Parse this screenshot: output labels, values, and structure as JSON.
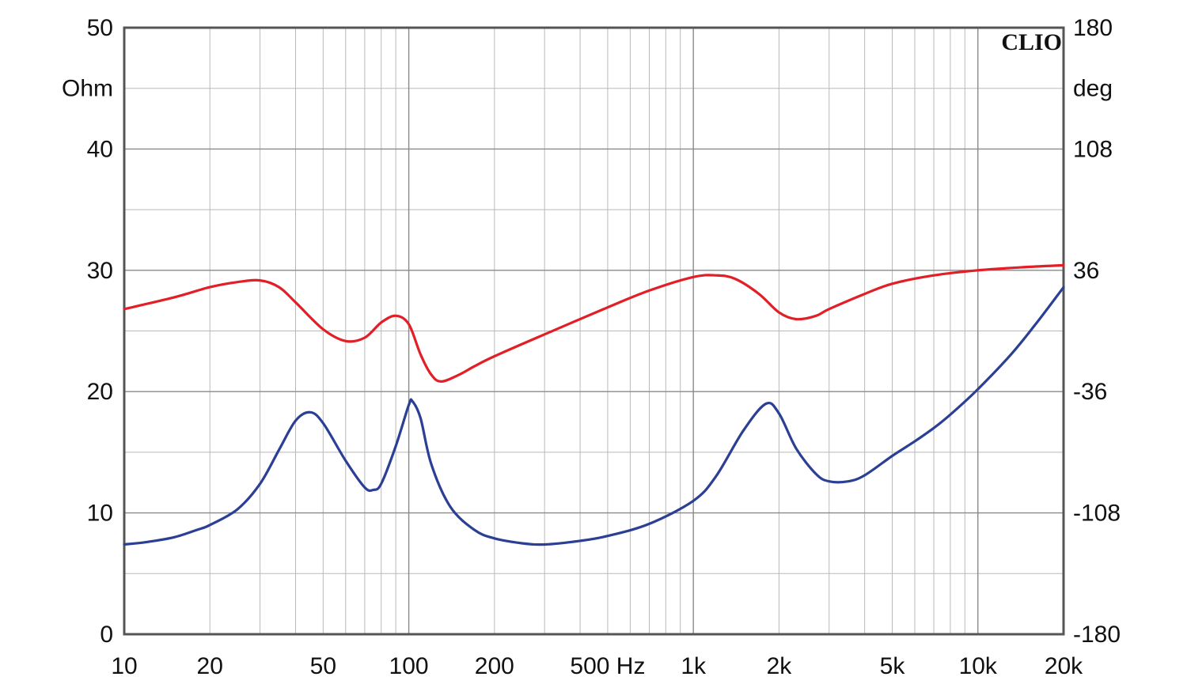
{
  "chart_data": {
    "type": "line",
    "brand": "CLIO",
    "x_scale": "log",
    "xlim": [
      10,
      20000
    ],
    "x_ticks": [
      {
        "value": 10,
        "label": "10"
      },
      {
        "value": 20,
        "label": "20"
      },
      {
        "value": 50,
        "label": "50"
      },
      {
        "value": 100,
        "label": "100"
      },
      {
        "value": 200,
        "label": "200"
      },
      {
        "value": 500,
        "label": "500 Hz"
      },
      {
        "value": 1000,
        "label": "1k"
      },
      {
        "value": 2000,
        "label": "2k"
      },
      {
        "value": 5000,
        "label": "5k"
      },
      {
        "value": 10000,
        "label": "10k"
      },
      {
        "value": 20000,
        "label": "20k"
      }
    ],
    "y_left": {
      "unit": "Ohm",
      "lim": [
        0,
        50
      ],
      "ticks": [
        0,
        10,
        20,
        30,
        40,
        50
      ]
    },
    "y_right": {
      "unit": "deg",
      "lim": [
        -180,
        180
      ],
      "ticks": [
        -180,
        -108,
        -36,
        36,
        108,
        180
      ]
    },
    "grid": true,
    "series": [
      {
        "axis": "left",
        "color": "#2b3f94",
        "points": [
          [
            10,
            7.4
          ],
          [
            12,
            7.6
          ],
          [
            15,
            8.0
          ],
          [
            18,
            8.6
          ],
          [
            20,
            9.0
          ],
          [
            25,
            10.3
          ],
          [
            30,
            12.4
          ],
          [
            35,
            15.2
          ],
          [
            40,
            17.6
          ],
          [
            45,
            18.3
          ],
          [
            50,
            17.4
          ],
          [
            60,
            14.3
          ],
          [
            70,
            12.1
          ],
          [
            75,
            11.9
          ],
          [
            80,
            12.4
          ],
          [
            90,
            15.5
          ],
          [
            100,
            18.9
          ],
          [
            103,
            19.2
          ],
          [
            110,
            17.8
          ],
          [
            120,
            14.0
          ],
          [
            140,
            10.5
          ],
          [
            170,
            8.6
          ],
          [
            200,
            7.9
          ],
          [
            250,
            7.5
          ],
          [
            300,
            7.4
          ],
          [
            400,
            7.7
          ],
          [
            500,
            8.1
          ],
          [
            700,
            9.1
          ],
          [
            1000,
            11.0
          ],
          [
            1200,
            13.0
          ],
          [
            1500,
            16.8
          ],
          [
            1800,
            19.0
          ],
          [
            2000,
            18.2
          ],
          [
            2300,
            15.3
          ],
          [
            2700,
            13.2
          ],
          [
            3000,
            12.6
          ],
          [
            3500,
            12.6
          ],
          [
            4000,
            13.1
          ],
          [
            5000,
            14.7
          ],
          [
            6000,
            15.9
          ],
          [
            7000,
            17.0
          ],
          [
            8000,
            18.1
          ],
          [
            10000,
            20.2
          ],
          [
            13000,
            23.0
          ],
          [
            16000,
            25.6
          ],
          [
            20000,
            28.6
          ]
        ]
      },
      {
        "axis": "right",
        "color": "#e21e26",
        "points": [
          [
            10,
            13
          ],
          [
            15,
            20
          ],
          [
            20,
            26
          ],
          [
            25,
            29
          ],
          [
            30,
            30
          ],
          [
            35,
            26
          ],
          [
            40,
            17
          ],
          [
            50,
            1
          ],
          [
            60,
            -6
          ],
          [
            70,
            -4
          ],
          [
            80,
            5
          ],
          [
            90,
            9
          ],
          [
            100,
            4
          ],
          [
            110,
            -14
          ],
          [
            120,
            -26
          ],
          [
            130,
            -30
          ],
          [
            150,
            -26
          ],
          [
            170,
            -21
          ],
          [
            200,
            -15
          ],
          [
            300,
            -2
          ],
          [
            500,
            14
          ],
          [
            700,
            24
          ],
          [
            1000,
            32
          ],
          [
            1200,
            33
          ],
          [
            1400,
            31
          ],
          [
            1700,
            22
          ],
          [
            2000,
            11
          ],
          [
            2300,
            7
          ],
          [
            2700,
            9
          ],
          [
            3000,
            13
          ],
          [
            4000,
            22
          ],
          [
            5000,
            28
          ],
          [
            7000,
            33
          ],
          [
            10000,
            36
          ],
          [
            15000,
            38
          ],
          [
            20000,
            39
          ]
        ]
      }
    ]
  }
}
